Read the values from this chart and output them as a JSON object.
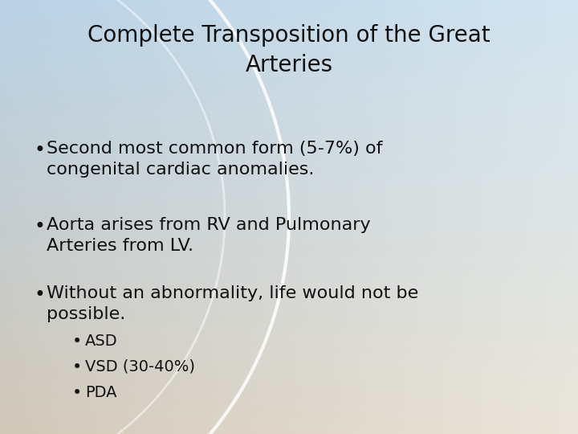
{
  "title_line1": "Complete Transposition of the Great",
  "title_line2": "Arteries",
  "title_fontsize": 20,
  "title_color": "#111111",
  "bullet_fontsize": 16,
  "sub_bullet_fontsize": 14,
  "text_color": "#111111",
  "bg_tl": [
    185,
    210,
    230
  ],
  "bg_tr": [
    210,
    228,
    240
  ],
  "bg_bl": [
    210,
    200,
    185
  ],
  "bg_br": [
    235,
    230,
    218
  ],
  "arc_color": "#ffffff",
  "bullets": [
    {
      "text": "Second most common form (5-7%) of\ncongenital cardiac anomalies.",
      "level": 0
    },
    {
      "text": "Aorta arises from RV and Pulmonary\nArteries from LV.",
      "level": 0
    },
    {
      "text": "Without an abnormality, life would not be\npossible.",
      "level": 0
    },
    {
      "text": "ASD",
      "level": 1
    },
    {
      "text": "VSD (30-40%)",
      "level": 1
    },
    {
      "text": "PDA",
      "level": 1
    }
  ]
}
